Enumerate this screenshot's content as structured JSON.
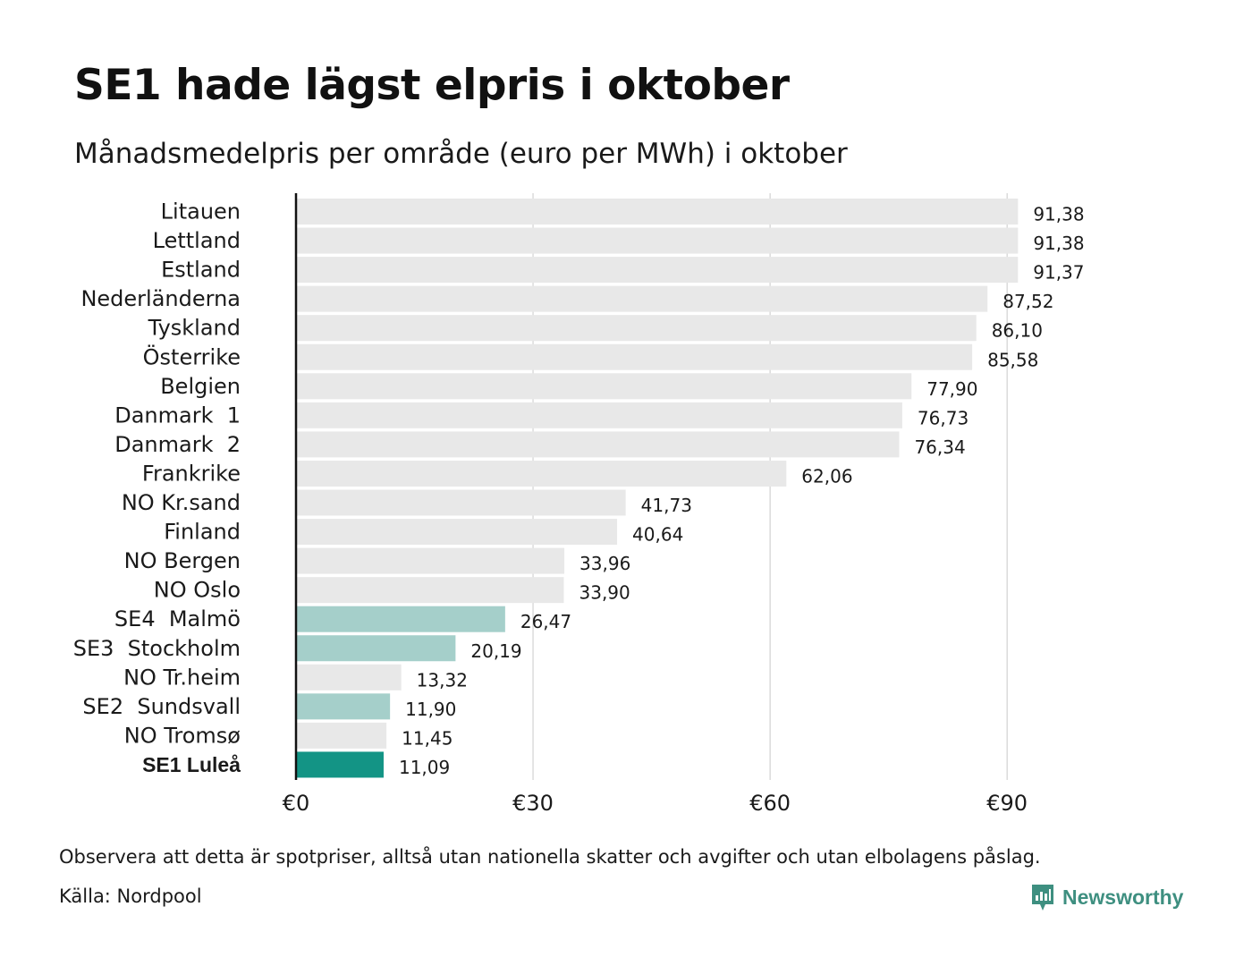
{
  "title": "SE1 hade lägst elpris i oktober",
  "subtitle": "Månadsmedelpris per område (euro per MWh) i oktober",
  "footer": {
    "note": "Observera att detta är spotpriser, alltså utan nationella skatter och avgifter och utan elbolagens påslag.",
    "source": "Källa: Nordpool",
    "brand": "Newsworthy"
  },
  "colors": {
    "bar_default": "#e8e8e8",
    "bar_se_area": "#a5cfca",
    "bar_highlight": "#139485",
    "brand": "#3e8f80"
  },
  "chart_data": {
    "type": "bar",
    "orientation": "horizontal",
    "categories": [
      "Litauen",
      "Lettland",
      "Estland",
      "Nederländerna",
      "Tyskland",
      "Österrike",
      "Belgien",
      "Danmark  1",
      "Danmark  2",
      "Frankrike",
      "NO Kr.sand",
      "Finland",
      "NO Bergen",
      "NO Oslo",
      "SE4  Malmö",
      "SE3  Stockholm",
      "NO Tr.heim",
      "SE2  Sundsvall",
      "NO Tromsø",
      "SE1 Luleå"
    ],
    "values": [
      91.38,
      91.38,
      91.37,
      87.52,
      86.1,
      85.58,
      77.9,
      76.73,
      76.34,
      62.06,
      41.73,
      40.64,
      33.96,
      33.9,
      26.47,
      20.19,
      13.32,
      11.9,
      11.45,
      11.09
    ],
    "value_labels": [
      "91,38",
      "91,38",
      "91,37",
      "87,52",
      "86,10",
      "85,58",
      "77,90",
      "76,73",
      "76,34",
      "62,06",
      "41,73",
      "40,64",
      "33,96",
      "33,90",
      "26,47",
      "20,19",
      "13,32",
      "11,90",
      "11,45",
      "11,09"
    ],
    "bar_colors": [
      "default",
      "default",
      "default",
      "default",
      "default",
      "default",
      "default",
      "default",
      "default",
      "default",
      "default",
      "default",
      "default",
      "default",
      "se",
      "se",
      "default",
      "se",
      "default",
      "highlight"
    ],
    "bold_labels": [
      "SE1 Luleå"
    ],
    "x_ticks": [
      0,
      30,
      60,
      90
    ],
    "x_tick_labels": [
      "€0",
      "€30",
      "€60",
      "€90"
    ],
    "xlim": [
      0,
      102
    ],
    "grid": "vertical",
    "xlabel": "",
    "ylabel": ""
  }
}
